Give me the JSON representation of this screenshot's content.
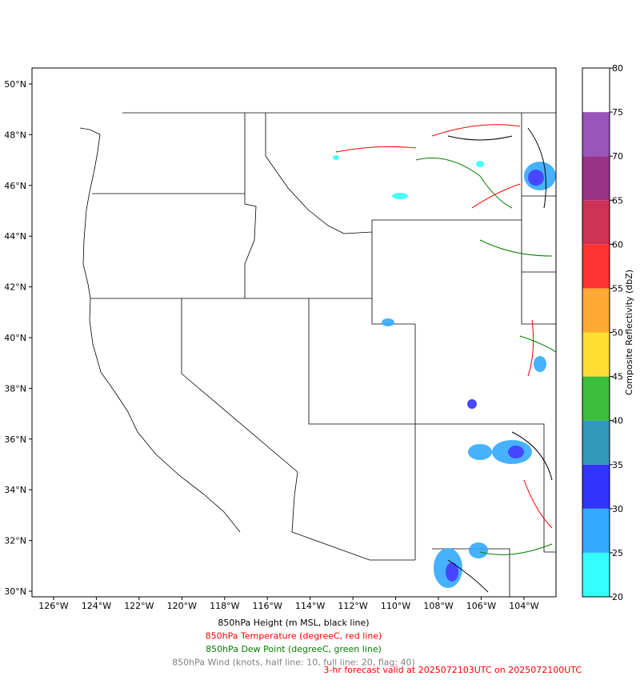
{
  "chart_data": {
    "type": "map",
    "xlim": [
      -127.01,
      -102.5
    ],
    "ylim": [
      29.78,
      50.63
    ],
    "xticks": [
      {
        "value": -126,
        "label": "126°W"
      },
      {
        "value": -124,
        "label": "124°W"
      },
      {
        "value": -122,
        "label": "122°W"
      },
      {
        "value": -120,
        "label": "120°W"
      },
      {
        "value": -118,
        "label": "118°W"
      },
      {
        "value": -116,
        "label": "116°W"
      },
      {
        "value": -114,
        "label": "114°W"
      },
      {
        "value": -112,
        "label": "112°W"
      },
      {
        "value": -110,
        "label": "110°W"
      },
      {
        "value": -108,
        "label": "108°W"
      },
      {
        "value": -106,
        "label": "106°W"
      },
      {
        "value": -104,
        "label": "104°W"
      }
    ],
    "yticks": [
      {
        "value": 30,
        "label": "30°N"
      },
      {
        "value": 32,
        "label": "32°N"
      },
      {
        "value": 34,
        "label": "34°N"
      },
      {
        "value": 36,
        "label": "36°N"
      },
      {
        "value": 38,
        "label": "38°N"
      },
      {
        "value": 40,
        "label": "40°N"
      },
      {
        "value": 42,
        "label": "42°N"
      },
      {
        "value": 44,
        "label": "44°N"
      },
      {
        "value": 46,
        "label": "46°N"
      },
      {
        "value": 48,
        "label": "48°N"
      },
      {
        "value": 50,
        "label": "50°N"
      }
    ],
    "colorbar": {
      "label": "Composite Reflectivity (dbZ)",
      "levels": [
        20,
        25,
        30,
        35,
        40,
        45,
        50,
        55,
        60,
        65,
        70,
        75,
        80
      ],
      "colors": [
        "#33ffff",
        "#33aaff",
        "#3333ff",
        "#3399bb",
        "#3cbd3c",
        "#ffdd33",
        "#ffaa33",
        "#ff3333",
        "#cc3355",
        "#993388",
        "#9955bb",
        "#ffffff"
      ]
    },
    "captions": [
      {
        "text": "850hPa Height (m MSL, black line)",
        "color": "#000000"
      },
      {
        "text": "850hPa Temperature (degreeC, red line)",
        "color": "#ff0000"
      },
      {
        "text": "850hPa Dew Point (degreeC, green line)",
        "color": "#008000"
      },
      {
        "text": "850hPa Wind (knots, half line: 10, full line: 20, flag: 40)",
        "color": "#808080"
      }
    ],
    "footnote": {
      "text": "3-hr forecast valid at 2025072103UTC on 2025072100UTC",
      "color": "#ff0000"
    }
  }
}
